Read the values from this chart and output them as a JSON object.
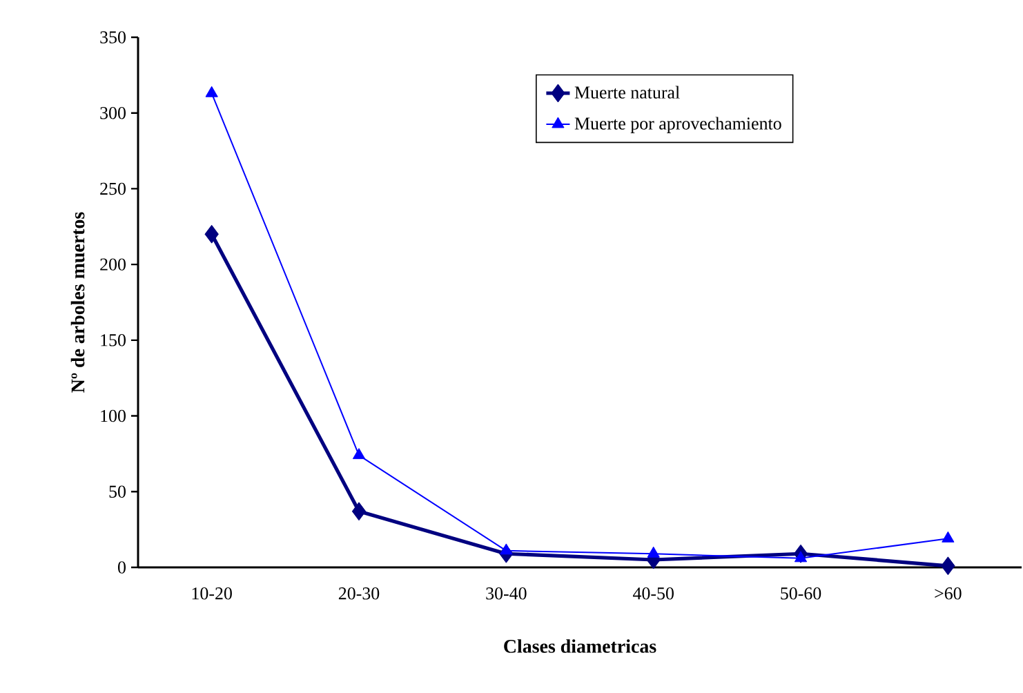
{
  "chart_data": {
    "type": "line",
    "xlabel": "Clases diametricas",
    "ylabel": "Nº de arboles muertos",
    "categories": [
      "10-20",
      "20-30",
      "30-40",
      "40-50",
      "50-60",
      ">60"
    ],
    "series": [
      {
        "name": "Muerte natural",
        "color": "#000080",
        "marker": "diamond",
        "values": [
          220,
          37,
          9,
          5,
          9,
          1
        ]
      },
      {
        "name": "Muerte por aprovechamiento",
        "color": "#0000ff",
        "marker": "triangle",
        "values": [
          313,
          74,
          11,
          9,
          6,
          19
        ]
      }
    ],
    "ylim": [
      0,
      350
    ],
    "yticks": [
      0,
      50,
      100,
      150,
      200,
      250,
      300,
      350
    ],
    "grid": false,
    "legend": "top right"
  }
}
